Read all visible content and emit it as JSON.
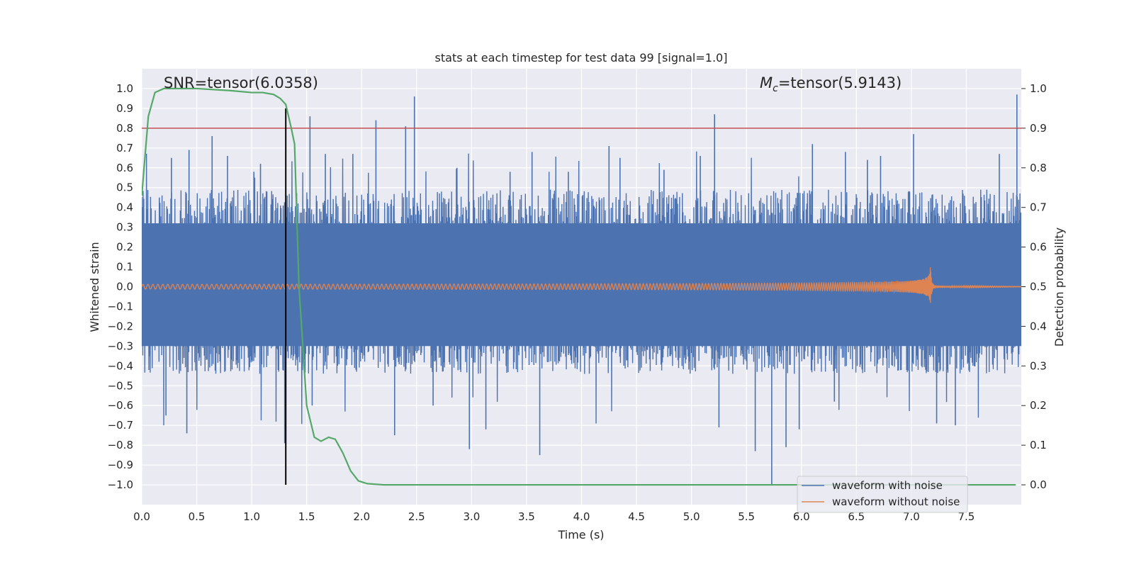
{
  "chart_data": {
    "type": "line",
    "title": "stats at each timestep for test data 99 [signal=1.0]",
    "xlabel": "Time (s)",
    "ylabel_left": "Whitened strain",
    "ylabel_right": "Detection probability",
    "xlim": [
      0.0,
      8.0
    ],
    "ylim_left": [
      -1.1,
      1.1
    ],
    "ylim_right": [
      -0.05,
      1.05
    ],
    "x_ticks": [
      "0.0",
      "0.5",
      "1.0",
      "1.5",
      "2.0",
      "2.5",
      "3.0",
      "3.5",
      "4.0",
      "4.5",
      "5.0",
      "5.5",
      "6.0",
      "6.5",
      "7.0",
      "7.5"
    ],
    "y_left_ticks": [
      "1.0",
      "0.9",
      "0.8",
      "0.7",
      "0.6",
      "0.5",
      "0.4",
      "0.3",
      "0.2",
      "0.1",
      "0.0",
      "−0.1",
      "−0.2",
      "−0.3",
      "−0.4",
      "−0.5",
      "−0.6",
      "−0.7",
      "−0.8",
      "−0.9",
      "−1.0"
    ],
    "y_right_ticks": [
      "1.0",
      "0.9",
      "0.8",
      "0.7",
      "0.6",
      "0.5",
      "0.4",
      "0.3",
      "0.2",
      "0.1",
      "0.0"
    ],
    "grid": true,
    "annotations": {
      "snr": "SNR=tensor(6.0358)",
      "mc_symbol": "M",
      "mc_subscript": "c",
      "mc_value": "=tensor(5.9143)"
    },
    "legend": {
      "position": "lower-right",
      "entries": [
        "waveform with noise",
        "waveform without noise"
      ]
    },
    "threshold": {
      "axis": "right",
      "value": 0.9,
      "color": "#c44e52"
    },
    "vline": {
      "x": 1.31,
      "y_from": -1.0,
      "y_to": 0.95,
      "color": "#000000"
    },
    "colors": {
      "noise": "#4c72b0",
      "signal": "#dd8452",
      "probability": "#55a868"
    },
    "waveform_noise": {
      "duration": 8.0,
      "upper_envelope_typ": 0.45,
      "lower_envelope_typ": -0.4,
      "spikes": [
        [
          0.16,
          0.45
        ],
        [
          0.22,
          -0.65
        ],
        [
          0.27,
          0.65
        ],
        [
          0.43,
          0.69
        ],
        [
          0.41,
          -0.74
        ],
        [
          0.64,
          0.76
        ],
        [
          0.78,
          0.66
        ],
        [
          1.02,
          0.58
        ],
        [
          1.08,
          0.62
        ],
        [
          1.3,
          -0.79
        ],
        [
          1.53,
          0.86
        ],
        [
          1.55,
          -0.6
        ],
        [
          1.67,
          0.67
        ],
        [
          1.92,
          0.67
        ],
        [
          2.13,
          0.84
        ],
        [
          2.4,
          0.81
        ],
        [
          2.48,
          0.96
        ],
        [
          2.3,
          -0.75
        ],
        [
          2.65,
          -0.6
        ],
        [
          2.98,
          -0.82
        ],
        [
          3.13,
          -0.72
        ],
        [
          3.35,
          0.58
        ],
        [
          3.55,
          0.68
        ],
        [
          3.62,
          -0.85
        ],
        [
          3.88,
          0.58
        ],
        [
          4.25,
          0.71
        ],
        [
          4.35,
          0.65
        ],
        [
          4.75,
          0.59
        ],
        [
          5.08,
          0.66
        ],
        [
          5.21,
          0.87
        ],
        [
          5.25,
          -0.71
        ],
        [
          5.58,
          -0.83
        ],
        [
          5.73,
          -1.0
        ],
        [
          5.86,
          -0.81
        ],
        [
          5.98,
          -0.72
        ],
        [
          6.1,
          0.72
        ],
        [
          6.3,
          -0.58
        ],
        [
          6.4,
          0.68
        ],
        [
          6.6,
          0.64
        ],
        [
          6.72,
          0.66
        ],
        [
          7.02,
          0.77
        ],
        [
          7.23,
          -0.69
        ],
        [
          7.4,
          -0.7
        ],
        [
          7.8,
          0.67
        ],
        [
          7.96,
          0.97
        ]
      ]
    },
    "waveform_clean": {
      "f0": 22,
      "amp0": 0.012,
      "t_merger": 7.17,
      "amp_peak": 0.14,
      "ringdown_amp": 0.006
    },
    "probability_curve": {
      "x": [
        0.0,
        0.06,
        0.12,
        0.2,
        0.3,
        0.5,
        0.8,
        1.0,
        1.1,
        1.2,
        1.26,
        1.31,
        1.36,
        1.39,
        1.43,
        1.5,
        1.57,
        1.63,
        1.7,
        1.76,
        1.83,
        1.9,
        1.97,
        2.05,
        2.2,
        3.0,
        4.0,
        5.0,
        6.0,
        7.0,
        7.95
      ],
      "y": [
        0.73,
        0.93,
        0.99,
        1.0,
        1.0,
        1.0,
        0.995,
        0.99,
        0.99,
        0.985,
        0.975,
        0.96,
        0.9,
        0.86,
        0.5,
        0.2,
        0.12,
        0.11,
        0.12,
        0.115,
        0.08,
        0.035,
        0.01,
        0.003,
        0.0,
        0.0,
        0.0,
        0.0,
        0.0,
        0.0,
        0.0
      ]
    }
  }
}
